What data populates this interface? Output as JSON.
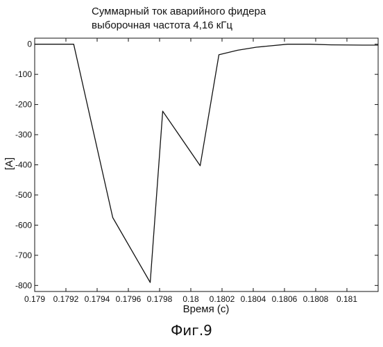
{
  "chart_data": {
    "type": "line",
    "title": "Суммарный ток аварийного фидера",
    "subtitle": "выборочная частота 4,16 кГц",
    "xlabel": "Время (с)",
    "ylabel": "[A]",
    "xlim": [
      0.179,
      0.1812
    ],
    "ylim": [
      -820,
      20
    ],
    "grid": false,
    "x_ticks": [
      0.179,
      0.1792,
      0.1794,
      0.1796,
      0.1798,
      0.18,
      0.1802,
      0.1804,
      0.1806,
      0.1808,
      0.181
    ],
    "x_tick_labels": [
      "0.179",
      "0.1792",
      "0.1794",
      "0.1796",
      "0.1798",
      "0.18",
      "0.1802",
      "0.1804",
      "0.1806",
      "0.1808",
      "0.181"
    ],
    "y_ticks": [
      0,
      -100,
      -200,
      -300,
      -400,
      -500,
      -600,
      -700,
      -800
    ],
    "y_tick_labels": [
      "0",
      "-100",
      "-200",
      "-300",
      "-400",
      "-500",
      "-600",
      "-700",
      "-800"
    ],
    "series": [
      {
        "x": [
          0.179,
          0.17915,
          0.17925,
          0.1795,
          0.17974,
          0.17982,
          0.18006,
          0.18018,
          0.1803,
          0.18042,
          0.18062,
          0.18076,
          0.1809,
          0.1811,
          0.1812
        ],
        "y": [
          0,
          0,
          0,
          -575,
          -790,
          -222,
          -403,
          -35,
          -20,
          -10,
          0,
          0,
          -2,
          -3,
          -3
        ]
      }
    ]
  },
  "figure_caption": "Фиг.9"
}
